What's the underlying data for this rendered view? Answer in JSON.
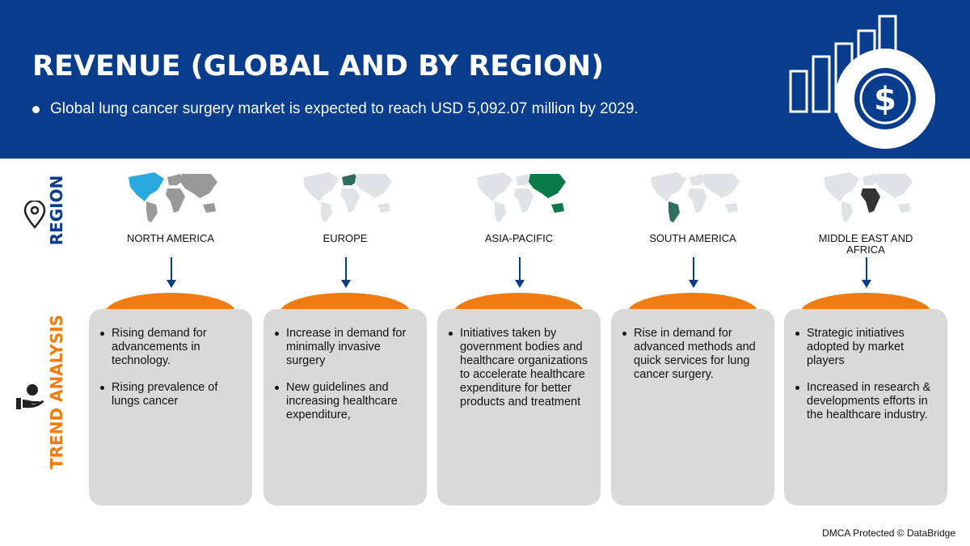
{
  "header": {
    "title": "REVENUE (GLOBAL AND BY REGION)",
    "bullet": "Global lung cancer surgery market is expected to reach USD 5,092.07 million by 2029."
  },
  "sidebar": {
    "region_label": "REGION",
    "trend_label": "TREND ANALYSIS"
  },
  "regions": [
    {
      "name": "NORTH AMERICA",
      "trends": [
        "Rising demand for advancements in technology.",
        "Rising prevalence of lungs cancer"
      ]
    },
    {
      "name": "EUROPE",
      "trends": [
        "Increase in demand for minimally invasive surgery",
        "New guidelines and increasing healthcare expenditure,"
      ]
    },
    {
      "name": "ASIA-PACIFIC",
      "trends": [
        "Initiatives taken by government bodies and healthcare organizations to accelerate healthcare expenditure for better products and treatment"
      ]
    },
    {
      "name": "SOUTH AMERICA",
      "trends": [
        "Rise in demand for advanced methods and quick services for lung cancer surgery."
      ]
    },
    {
      "name": "MIDDLE EAST AND AFRICA",
      "trends": [
        "Strategic initiatives adopted by market players",
        "Increased in research & developments efforts in the healthcare industry."
      ]
    }
  ],
  "footer": "DMCA Protected © DataBridge"
}
